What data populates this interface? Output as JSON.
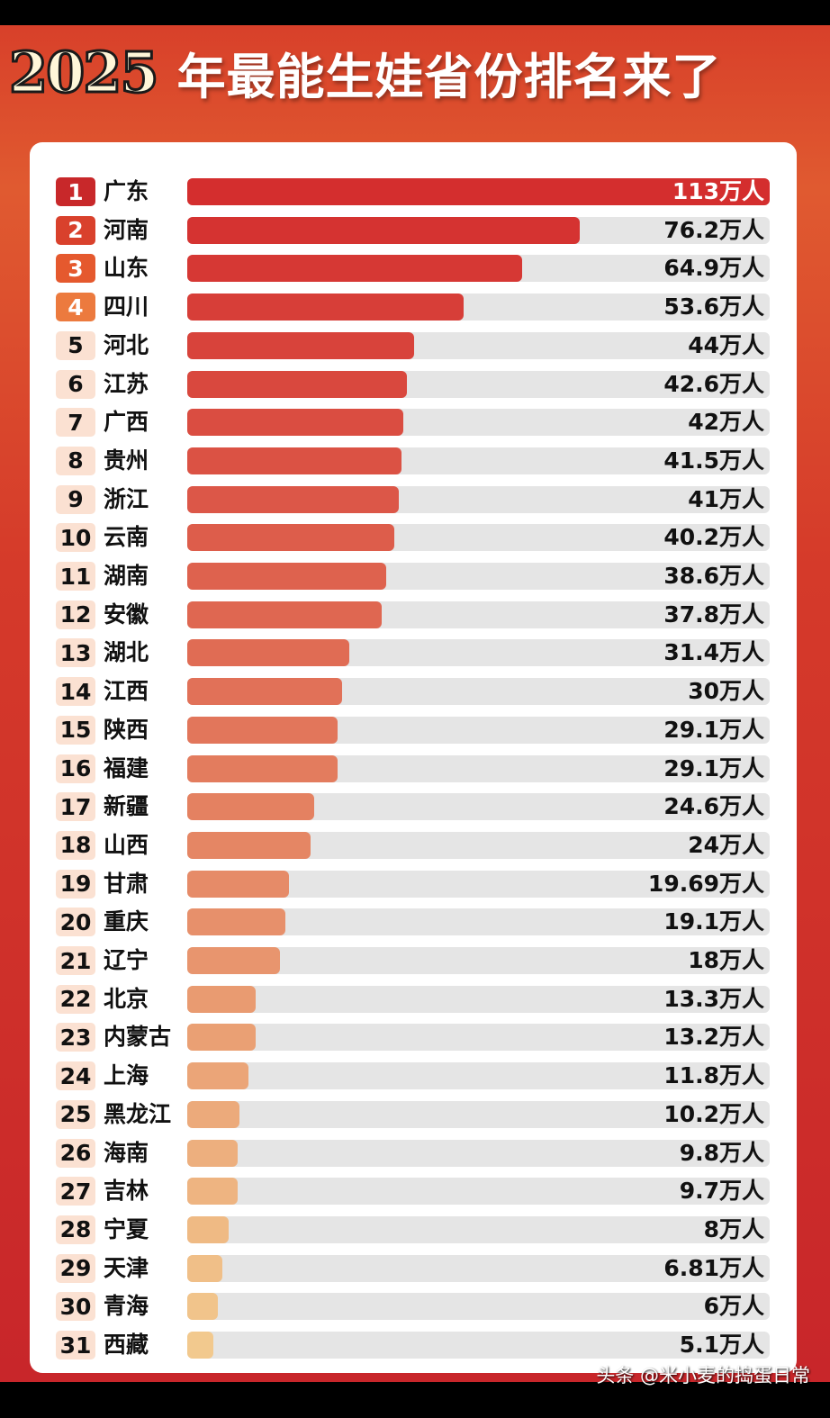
{
  "header": {
    "year": "2025",
    "headline": "年最能生娃省份排名来了"
  },
  "watermark": "头条 @米小麦的捣蛋日常",
  "colors": {
    "bar_start": "#d42e2e",
    "bar_end": "#f2c98e",
    "track": "#e5e5e5",
    "background": "#d53a2a"
  },
  "chart_data": {
    "type": "bar",
    "orientation": "horizontal",
    "unit": "万人",
    "xlim": [
      0,
      113
    ],
    "categories": [
      "广东",
      "河南",
      "山东",
      "四川",
      "河北",
      "江苏",
      "广西",
      "贵州",
      "浙江",
      "云南",
      "湖南",
      "安徽",
      "湖北",
      "江西",
      "陕西",
      "福建",
      "新疆",
      "山西",
      "甘肃",
      "重庆",
      "辽宁",
      "北京",
      "内蒙古",
      "上海",
      "黑龙江",
      "海南",
      "吉林",
      "宁夏",
      "天津",
      "青海",
      "西藏"
    ],
    "values": [
      113,
      76.2,
      64.9,
      53.6,
      44,
      42.6,
      42,
      41.5,
      41,
      40.2,
      38.6,
      37.8,
      31.4,
      30,
      29.1,
      29.1,
      24.6,
      24,
      19.69,
      19.1,
      18,
      13.3,
      13.2,
      11.8,
      10.2,
      9.8,
      9.7,
      8,
      6.81,
      6,
      5.1
    ],
    "labels": [
      "113万人",
      "76.2万人",
      "64.9万人",
      "53.6万人",
      "44万人",
      "42.6万人",
      "42万人",
      "41.5万人",
      "41万人",
      "40.2万人",
      "38.6万人",
      "37.8万人",
      "31.4万人",
      "30万人",
      "29.1万人",
      "29.1万人",
      "24.6万人",
      "24万人",
      "19.69万人",
      "19.1万人",
      "18万人",
      "13.3万人",
      "13.2万人",
      "11.8万人",
      "10.2万人",
      "9.8万人",
      "9.7万人",
      "8万人",
      "6.81万人",
      "6万人",
      "5.1万人"
    ],
    "ranks": [
      "1",
      "2",
      "3",
      "4",
      "5",
      "6",
      "7",
      "8",
      "9",
      "10",
      "11",
      "12",
      "13",
      "14",
      "15",
      "16",
      "17",
      "18",
      "19",
      "20",
      "21",
      "22",
      "23",
      "24",
      "25",
      "26",
      "27",
      "28",
      "29",
      "30",
      "31"
    ]
  }
}
